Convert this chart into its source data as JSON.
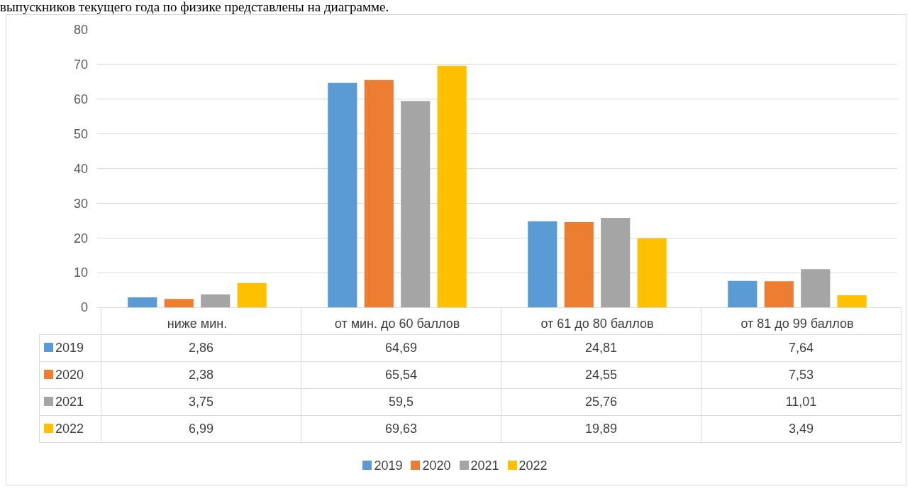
{
  "chart_data": {
    "type": "bar",
    "annotations": [
      "выпускников текущего года по физике представлены на диаграмме."
    ],
    "categories": [
      "ниже мин.",
      "от мин. до 60 баллов",
      "от 61 до 80 баллов",
      "от 81 до 99 баллов"
    ],
    "series": [
      {
        "name": "2019",
        "color": "#5b9bd5",
        "values": [
          2.86,
          64.69,
          24.81,
          7.64
        ],
        "value_labels": [
          "2,86",
          "64,69",
          "24,81",
          "7,64"
        ]
      },
      {
        "name": "2020",
        "color": "#ed7d31",
        "values": [
          2.38,
          65.54,
          24.55,
          7.53
        ],
        "value_labels": [
          "2,38",
          "65,54",
          "24,55",
          "7,53"
        ]
      },
      {
        "name": "2021",
        "color": "#a5a5a5",
        "values": [
          3.75,
          59.5,
          25.76,
          11.01
        ],
        "value_labels": [
          "3,75",
          "59,5",
          "25,76",
          "11,01"
        ]
      },
      {
        "name": "2022",
        "color": "#ffc000",
        "values": [
          6.99,
          69.63,
          19.89,
          3.49
        ],
        "value_labels": [
          "6,99",
          "69,63",
          "19,89",
          "3,49"
        ]
      }
    ],
    "ylim": [
      0,
      80
    ],
    "yticks": [
      0,
      10,
      20,
      30,
      40,
      50,
      60,
      70,
      80
    ],
    "grid": "y",
    "legend": "bottom"
  }
}
